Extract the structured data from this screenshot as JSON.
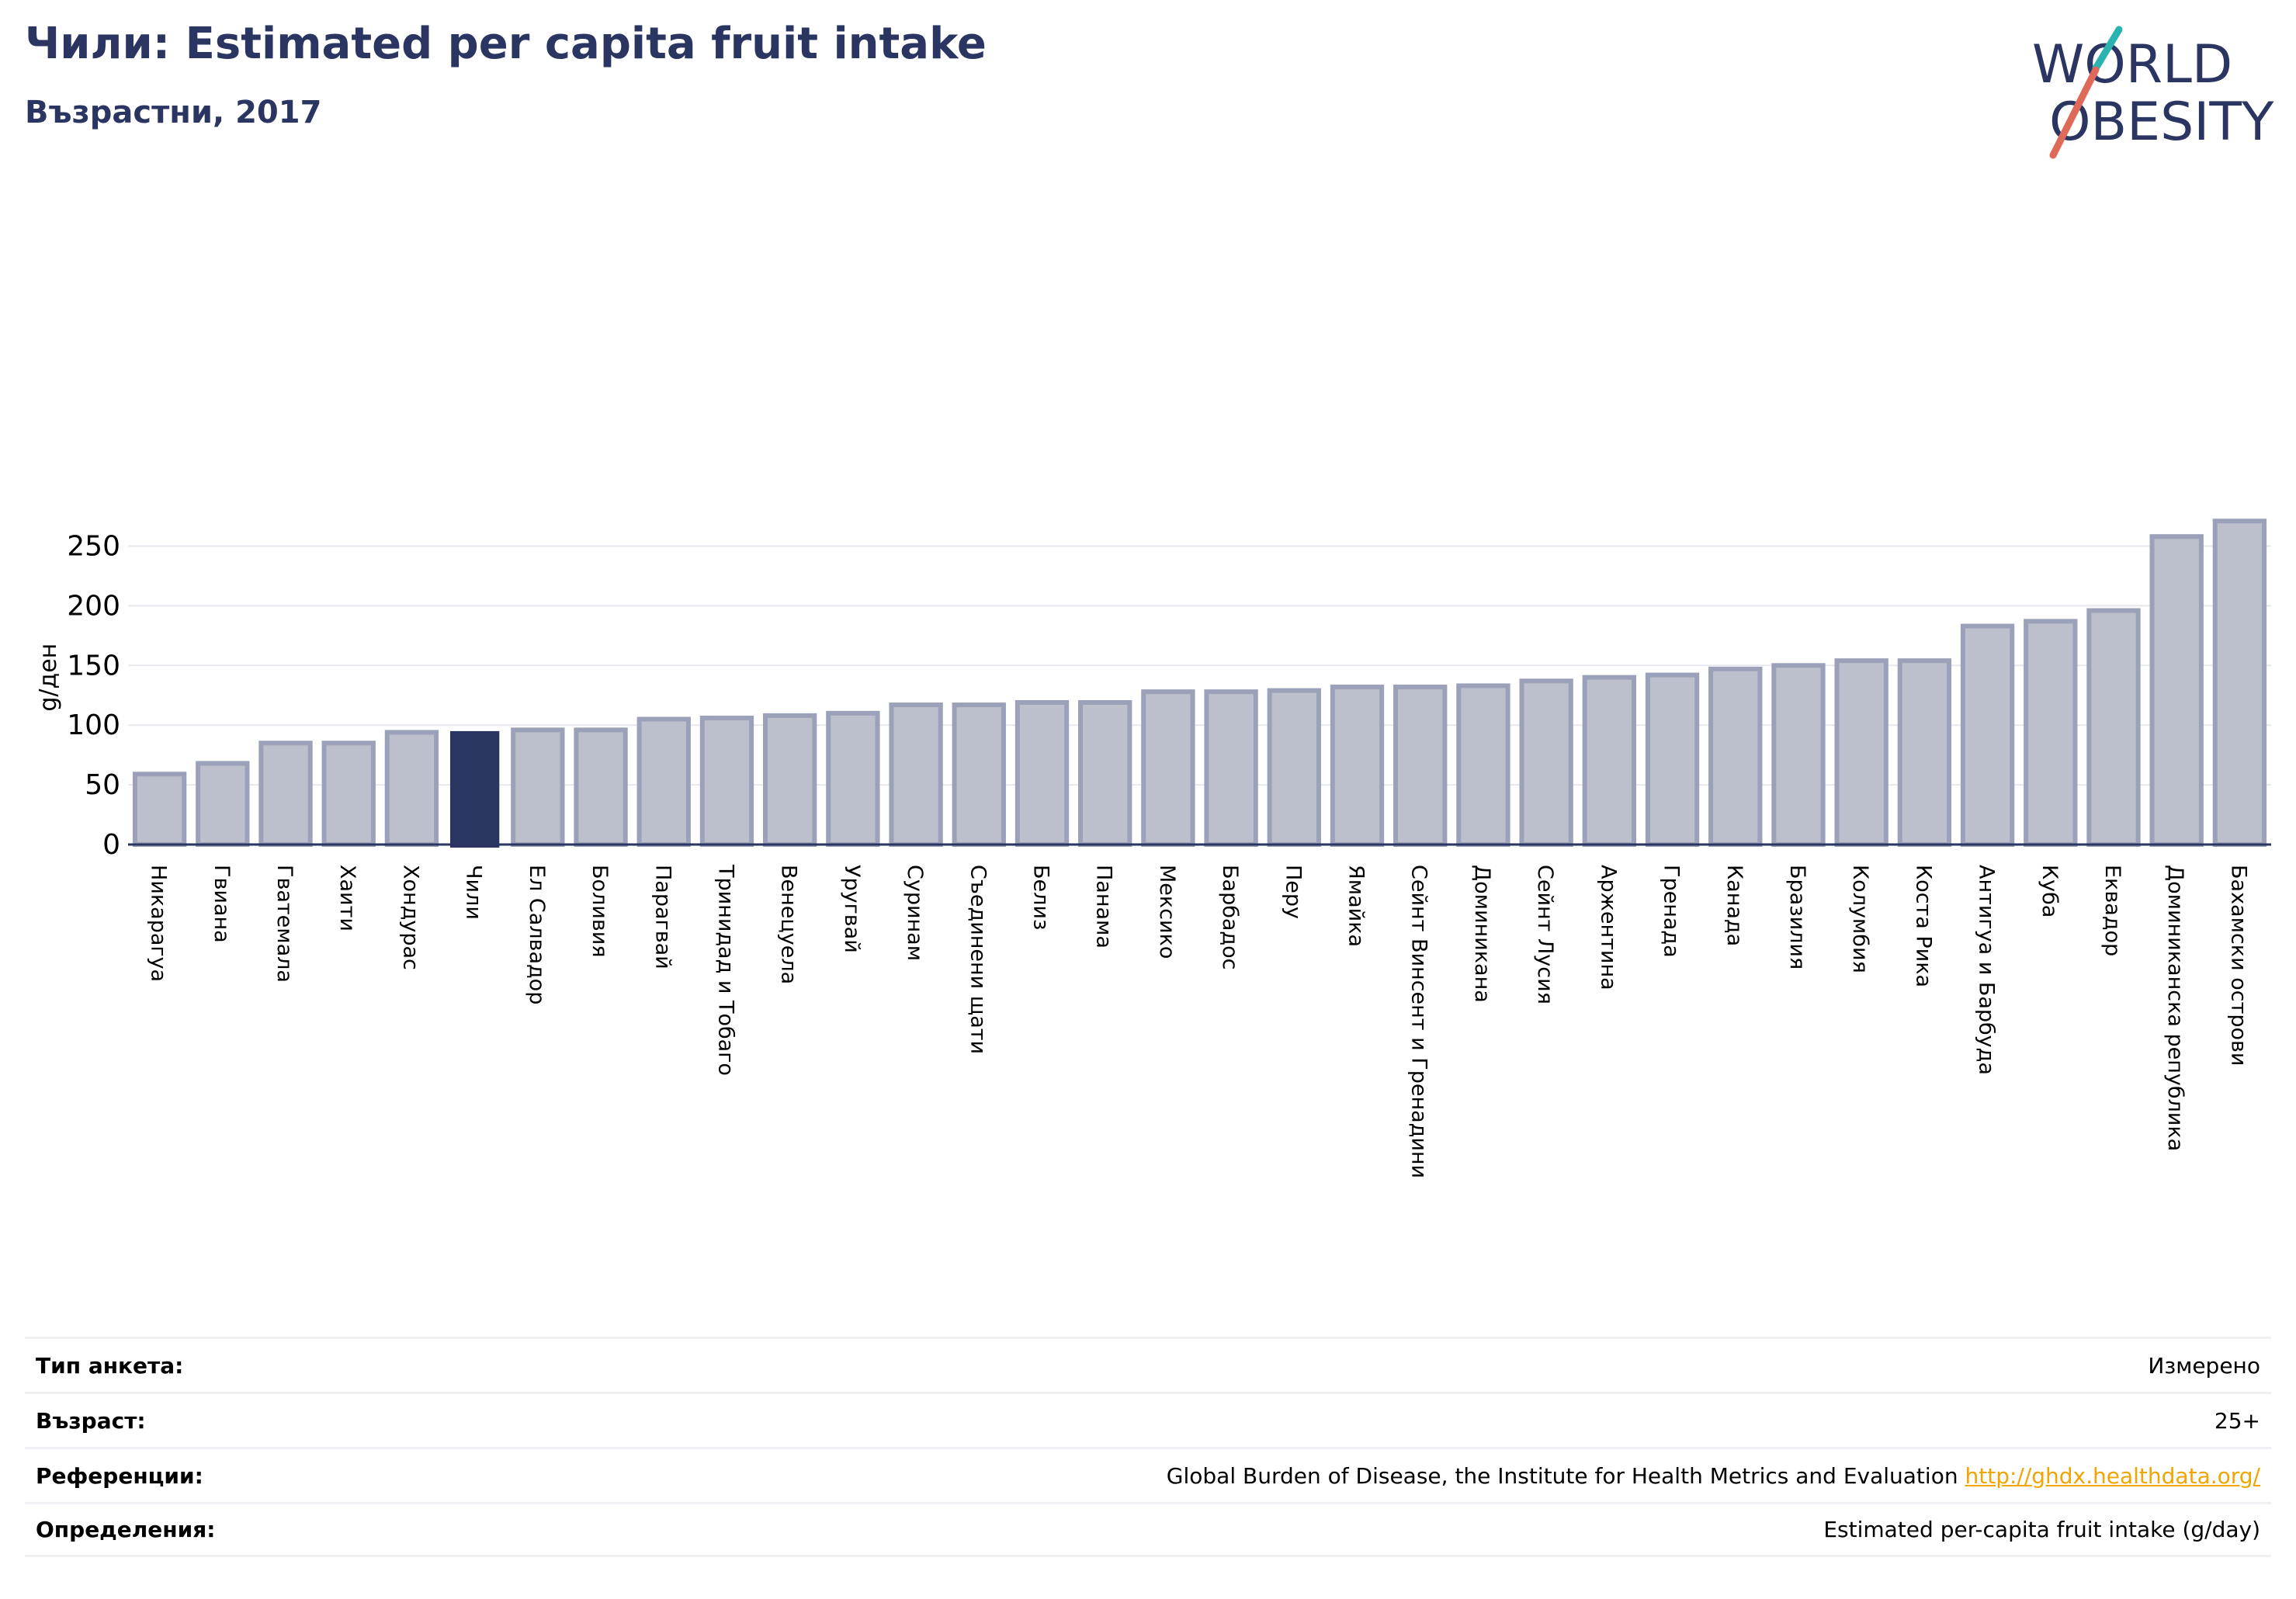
{
  "header": {
    "title": "Чили: Estimated per capita fruit intake",
    "subtitle": "Възрастни, 2017"
  },
  "logo": {
    "line1": "WORLD",
    "line2": "OBESITY"
  },
  "colors": {
    "bar": "#bcc0cd",
    "bar_edge": "#9ba1b8",
    "highlight": "#2a3561",
    "accent_teal": "#2bb3b1",
    "accent_red": "#e06a5a",
    "grid": "#e6e8ee",
    "link": "#f0a500"
  },
  "chart_data": {
    "type": "bar",
    "highlight": "Чили",
    "categories": [
      "Никарагуа",
      "Гвиана",
      "Гватемала",
      "Хаити",
      "Хондурас",
      "Чили",
      "Ел Салвадор",
      "Боливия",
      "Парагвай",
      "Тринидад и Тобаго",
      "Венецуела",
      "Уругвай",
      "Суринам",
      "Съединени щати",
      "Белиз",
      "Панама",
      "Мексико",
      "Барбадос",
      "Перу",
      "Ямайка",
      "Сейнт Винсент и Гренадини",
      "Доминикана",
      "Сейнт Лусия",
      "Аржентина",
      "Гренада",
      "Канада",
      "Бразилия",
      "Колумбия",
      "Коста Рика",
      "Антигуа и Барбуда",
      "Куба",
      "Еквадор",
      "Доминиканска република",
      "Бахамски острови"
    ],
    "values": [
      59,
      68,
      85,
      85,
      94,
      95,
      96,
      96,
      105,
      106,
      108,
      110,
      117,
      117,
      119,
      119,
      128,
      128,
      129,
      132,
      132,
      133,
      137,
      140,
      142,
      147,
      150,
      154,
      154,
      183,
      187,
      196,
      258,
      271
    ],
    "ylabel": "g/ден",
    "ylim": [
      0,
      280
    ],
    "yticks": [
      "0",
      "50",
      "100",
      "150",
      "200",
      "250"
    ],
    "grid": true
  },
  "info": {
    "rows": [
      {
        "label": "Тип анкета:",
        "value": "Измерено"
      },
      {
        "label": "Възраст:",
        "value": "25+"
      },
      {
        "label": "Референции:",
        "value": "Global Burden of Disease, the Institute for Health Metrics and Evaluation",
        "link": "http://ghdx.healthdata.org/"
      },
      {
        "label": "Определения:",
        "value": "Estimated per-capita fruit intake (g/day)"
      }
    ]
  }
}
